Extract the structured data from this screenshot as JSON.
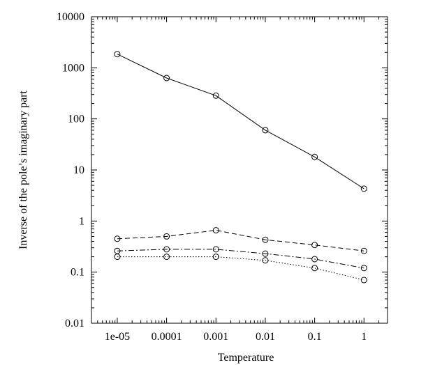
{
  "chart_data": {
    "type": "line",
    "xlabel": "Temperature",
    "ylabel": "Inverse of the pole’s imaginary part",
    "x_scale": "log",
    "y_scale": "log",
    "xlim": [
      3e-06,
      3
    ],
    "ylim": [
      0.01,
      10000
    ],
    "x_ticks": [
      1e-05,
      0.0001,
      0.001,
      0.01,
      0.1,
      1
    ],
    "x_tick_labels": [
      "1e-05",
      "0.0001",
      "0.001",
      "0.01",
      "0.1",
      "1"
    ],
    "y_ticks": [
      0.01,
      0.1,
      1,
      10,
      100,
      1000,
      10000
    ],
    "y_tick_labels": [
      "0.01",
      "0.1",
      "1",
      "10",
      "100",
      "1000",
      "10000"
    ],
    "grid": false,
    "marker": "open circle",
    "x": [
      1e-05,
      0.0001,
      0.001,
      0.01,
      0.1,
      1
    ],
    "series": [
      {
        "style": "solid",
        "values": [
          1850,
          630,
          285,
          60,
          18,
          4.3
        ]
      },
      {
        "style": "dashed",
        "values": [
          0.45,
          0.5,
          0.66,
          0.43,
          0.34,
          0.26
        ]
      },
      {
        "style": "dash-dot",
        "values": [
          0.26,
          0.28,
          0.28,
          0.23,
          0.18,
          0.12
        ]
      },
      {
        "style": "dotted",
        "values": [
          0.2,
          0.2,
          0.2,
          0.17,
          0.12,
          0.07
        ]
      }
    ]
  }
}
